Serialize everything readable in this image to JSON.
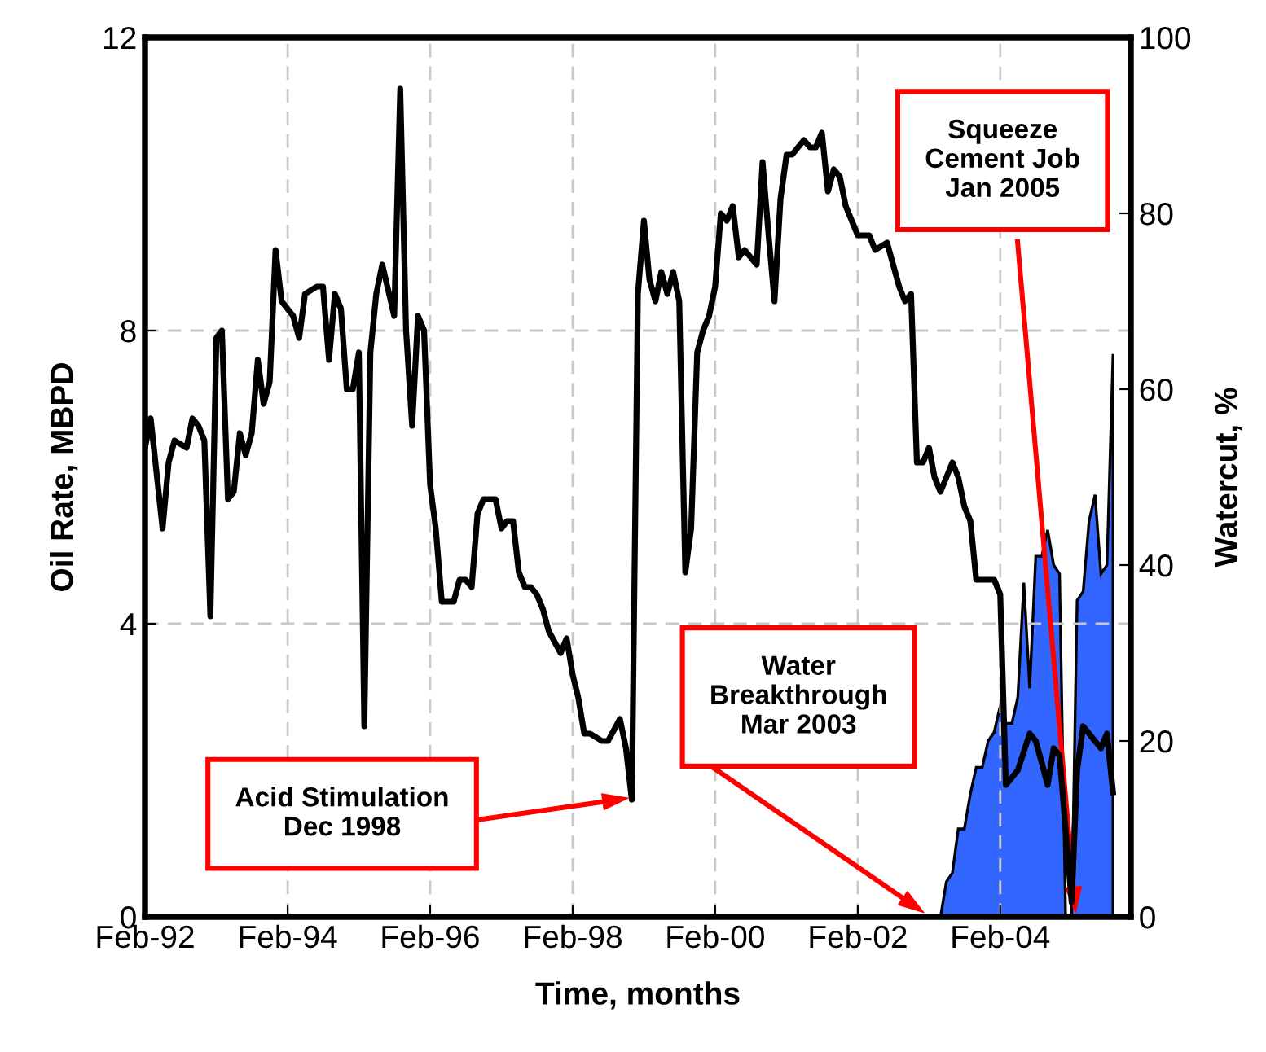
{
  "chart_data": {
    "type": "line",
    "xlabel": "Time, months",
    "ylabel": "Oil Rate, MBPD",
    "y2label": "Watercut, %",
    "xlim": [
      "1992-02",
      "2005-12"
    ],
    "xticks": [
      {
        "value": "1992-02",
        "label": "Feb-92"
      },
      {
        "value": "1994-02",
        "label": "Feb-94"
      },
      {
        "value": "1996-02",
        "label": "Feb-96"
      },
      {
        "value": "1998-02",
        "label": "Feb-98"
      },
      {
        "value": "2000-02",
        "label": "Feb-00"
      },
      {
        "value": "2002-02",
        "label": "Feb-02"
      },
      {
        "value": "2004-02",
        "label": "Feb-04"
      }
    ],
    "ylim": [
      0,
      12
    ],
    "yticks": [
      0,
      4,
      8,
      12
    ],
    "y2lim": [
      0,
      100
    ],
    "y2ticks": [
      0,
      20,
      40,
      60,
      80,
      100
    ],
    "grid": true,
    "legend": false,
    "marker": "none",
    "line_style": "solid",
    "series": [
      {
        "type": "area",
        "axis": "y2",
        "color": "#3366ff",
        "x": [
          "2003-04",
          "2003-05",
          "2003-06",
          "2003-07",
          "2003-08",
          "2003-09",
          "2003-10",
          "2003-11",
          "2003-12",
          "2004-01",
          "2004-02",
          "2004-03",
          "2004-04",
          "2004-05",
          "2004-06",
          "2004-07",
          "2004-08",
          "2004-09",
          "2004-10",
          "2004-11",
          "2004-12",
          "2005-01",
          "2005-02",
          "2005-03",
          "2005-04",
          "2005-05",
          "2005-06",
          "2005-07",
          "2005-08",
          "2005-09"
        ],
        "values": [
          0,
          4,
          5,
          10,
          10,
          14,
          17,
          17,
          20,
          21,
          24,
          22,
          22,
          25,
          38,
          26,
          41,
          41,
          44,
          40,
          39,
          0,
          0,
          36,
          37,
          45,
          48,
          39,
          40,
          64
        ]
      },
      {
        "axis": "y",
        "color": "#000000",
        "x": [
          "1992-02",
          "1992-03",
          "1992-05",
          "1992-06",
          "1992-07",
          "1992-09",
          "1992-10",
          "1992-11",
          "1992-12",
          "1993-01",
          "1993-02",
          "1993-03",
          "1993-04",
          "1993-05",
          "1993-06",
          "1993-07",
          "1993-08",
          "1993-09",
          "1993-10",
          "1993-11",
          "1993-12",
          "1994-01",
          "1994-03",
          "1994-04",
          "1994-05",
          "1994-07",
          "1994-08",
          "1994-09",
          "1994-10",
          "1994-11",
          "1994-12",
          "1995-01",
          "1995-02",
          "1995-03",
          "1995-04",
          "1995-05",
          "1995-06",
          "1995-08",
          "1995-09",
          "1995-10",
          "1995-11",
          "1995-12",
          "1996-01",
          "1996-02",
          "1996-03",
          "1996-04",
          "1996-05",
          "1996-06",
          "1996-07",
          "1996-08",
          "1996-09",
          "1996-10",
          "1996-11",
          "1997-01",
          "1997-02",
          "1997-03",
          "1997-04",
          "1997-05",
          "1997-06",
          "1997-07",
          "1997-08",
          "1997-09",
          "1997-10",
          "1997-12",
          "1998-01",
          "1998-02",
          "1998-03",
          "1998-04",
          "1998-05",
          "1998-07",
          "1998-08",
          "1998-10",
          "1998-11",
          "1998-12",
          "1999-01",
          "1999-02",
          "1999-03",
          "1999-04",
          "1999-05",
          "1999-06",
          "1999-07",
          "1999-08",
          "1999-09",
          "1999-10",
          "1999-11",
          "1999-12",
          "2000-01",
          "2000-02",
          "2000-03",
          "2000-04",
          "2000-05",
          "2000-06",
          "2000-07",
          "2000-08",
          "2000-09",
          "2000-10",
          "2000-11",
          "2000-12",
          "2001-01",
          "2001-02",
          "2001-03",
          "2001-05",
          "2001-06",
          "2001-07",
          "2001-08",
          "2001-09",
          "2001-10",
          "2001-11",
          "2001-12",
          "2002-01",
          "2002-02",
          "2002-03",
          "2002-04",
          "2002-05",
          "2002-07",
          "2002-08",
          "2002-09",
          "2002-10",
          "2002-11",
          "2002-12",
          "2003-01",
          "2003-02",
          "2003-03",
          "2003-04",
          "2003-06",
          "2003-07",
          "2003-08",
          "2003-09",
          "2003-10",
          "2003-11",
          "2004-01",
          "2004-02",
          "2004-03",
          "2004-05",
          "2004-07",
          "2004-08",
          "2004-09",
          "2004-10",
          "2004-11",
          "2004-12",
          "2005-02",
          "2005-03",
          "2005-04",
          "2005-05",
          "2005-07",
          "2005-08",
          "2005-09"
        ],
        "values": [
          6.4,
          6.8,
          5.3,
          6.2,
          6.5,
          6.4,
          6.8,
          6.7,
          6.5,
          4.1,
          7.9,
          8.0,
          5.7,
          5.8,
          6.6,
          6.3,
          6.6,
          7.6,
          7.0,
          7.3,
          9.1,
          8.4,
          8.2,
          7.9,
          8.5,
          8.6,
          8.6,
          7.6,
          8.5,
          8.3,
          7.2,
          7.2,
          7.7,
          2.6,
          7.7,
          8.5,
          8.9,
          8.2,
          11.3,
          8.0,
          6.7,
          8.2,
          8.0,
          5.9,
          5.3,
          4.3,
          4.3,
          4.3,
          4.6,
          4.6,
          4.5,
          5.5,
          5.7,
          5.7,
          5.3,
          5.4,
          5.4,
          4.7,
          4.5,
          4.5,
          4.4,
          4.2,
          3.9,
          3.6,
          3.8,
          3.3,
          3.0,
          2.5,
          2.5,
          2.4,
          2.4,
          2.7,
          2.3,
          1.6,
          8.5,
          9.5,
          8.7,
          8.4,
          8.8,
          8.5,
          8.8,
          8.4,
          4.7,
          5.3,
          7.7,
          8.0,
          8.2,
          8.6,
          9.6,
          9.5,
          9.7,
          9.0,
          9.1,
          9.0,
          8.9,
          10.3,
          9.3,
          8.4,
          9.8,
          10.4,
          10.4,
          10.6,
          10.5,
          10.5,
          10.7,
          9.9,
          10.2,
          10.1,
          9.7,
          9.5,
          9.3,
          9.3,
          9.3,
          9.1,
          9.2,
          8.9,
          8.6,
          8.4,
          8.5,
          6.2,
          6.2,
          6.4,
          6.0,
          5.8,
          6.2,
          6.0,
          5.6,
          5.4,
          4.6,
          4.6,
          4.6,
          4.4,
          1.8,
          2.0,
          2.5,
          2.4,
          2.1,
          1.8,
          2.3,
          2.2,
          0.2,
          2.0,
          2.6,
          2.5,
          2.3,
          2.5,
          1.7
        ]
      }
    ],
    "annotations": [
      "Acid Stimulation\nDec 1998",
      "Water\nBreakthrough\nMar 2003",
      "Squeeze\nCement Job\nJan 2005"
    ]
  }
}
